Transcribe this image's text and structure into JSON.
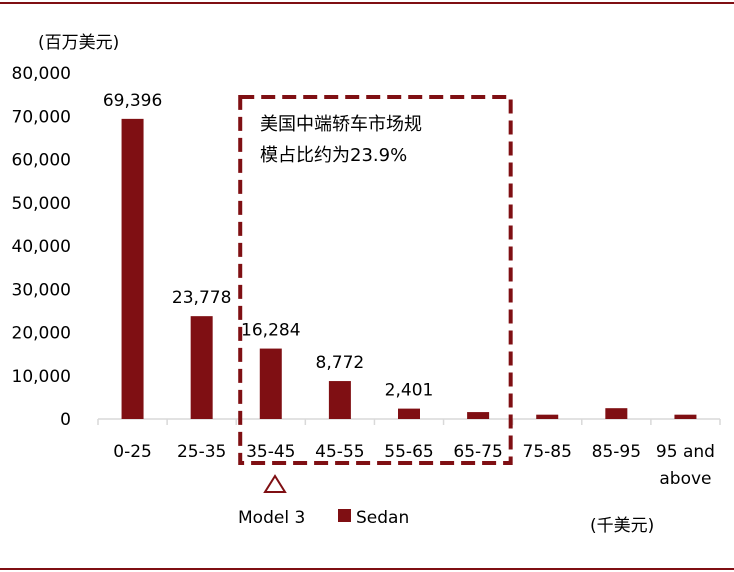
{
  "chart_data": {
    "type": "bar",
    "title": "",
    "y_unit": "(百万美元)",
    "x_unit": "(千美元)",
    "categories": [
      "0-25",
      "25-35",
      "35-45",
      "45-55",
      "55-65",
      "65-75",
      "75-85",
      "85-95",
      "95 and above"
    ],
    "series": [
      {
        "name": "Sedan",
        "values": [
          69396,
          23778,
          16284,
          8772,
          2401,
          1600,
          1000,
          2500,
          1000
        ]
      }
    ],
    "data_labels": [
      "69,396",
      "23,778",
      "16,284",
      "8,772",
      "2,401",
      "",
      "",
      "",
      ""
    ],
    "ylim": [
      0,
      80000
    ],
    "y_ticks": [
      0,
      10000,
      20000,
      30000,
      40000,
      50000,
      60000,
      70000,
      80000
    ],
    "y_tick_labels": [
      "0",
      "10,000",
      "20,000",
      "30,000",
      "40,000",
      "50,000",
      "60,000",
      "70,000",
      "80,000"
    ],
    "grid": false,
    "legend": {
      "placement": "bottom",
      "items": [
        {
          "label": "Model 3",
          "marker": "triangle-outline"
        },
        {
          "label": "Sedan",
          "marker": "square"
        }
      ]
    },
    "annotation": {
      "lines": [
        "美国中端轿车市场规",
        "模占比约为23.9%"
      ],
      "covers_categories": [
        "35-45",
        "45-55",
        "55-65",
        "65-75"
      ]
    },
    "colors": {
      "bar": "#7f0f13",
      "box": "#7f0f13",
      "axis": "#d9d9d9",
      "frame": "#7f0f13"
    }
  }
}
